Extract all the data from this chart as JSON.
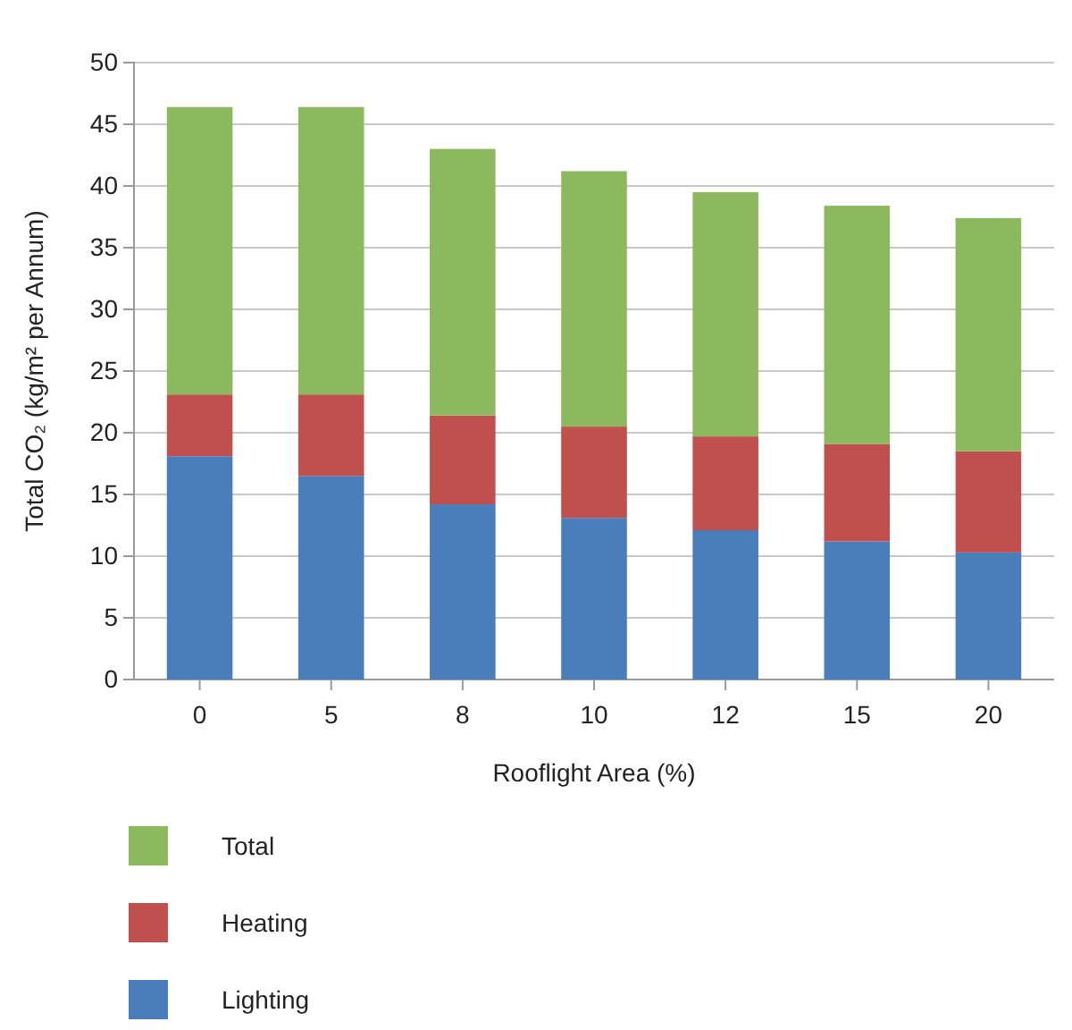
{
  "chart_data": {
    "type": "bar",
    "stacked": true,
    "xlabel": "Rooflight Area (%)",
    "ylabel": "Total CO₂ (kg/m² per Annum)",
    "categories": [
      "0",
      "5",
      "8",
      "10",
      "12",
      "15",
      "20"
    ],
    "series": [
      {
        "name": "Lighting",
        "color": "#4a7ebb",
        "values": [
          18.1,
          16.5,
          14.2,
          13.1,
          12.1,
          11.2,
          10.3
        ]
      },
      {
        "name": "Heating",
        "color": "#c0504d",
        "values": [
          5.0,
          6.6,
          7.2,
          7.4,
          7.6,
          7.9,
          8.2
        ]
      },
      {
        "name": "Total",
        "color": "#8db95e",
        "values": [
          23.3,
          23.3,
          21.6,
          20.7,
          19.8,
          19.3,
          18.9
        ]
      }
    ],
    "ylim": [
      0,
      50
    ],
    "yticks": [
      0,
      5,
      10,
      15,
      20,
      25,
      30,
      35,
      40,
      45,
      50
    ],
    "grid": "y",
    "legend": "bottom left"
  }
}
